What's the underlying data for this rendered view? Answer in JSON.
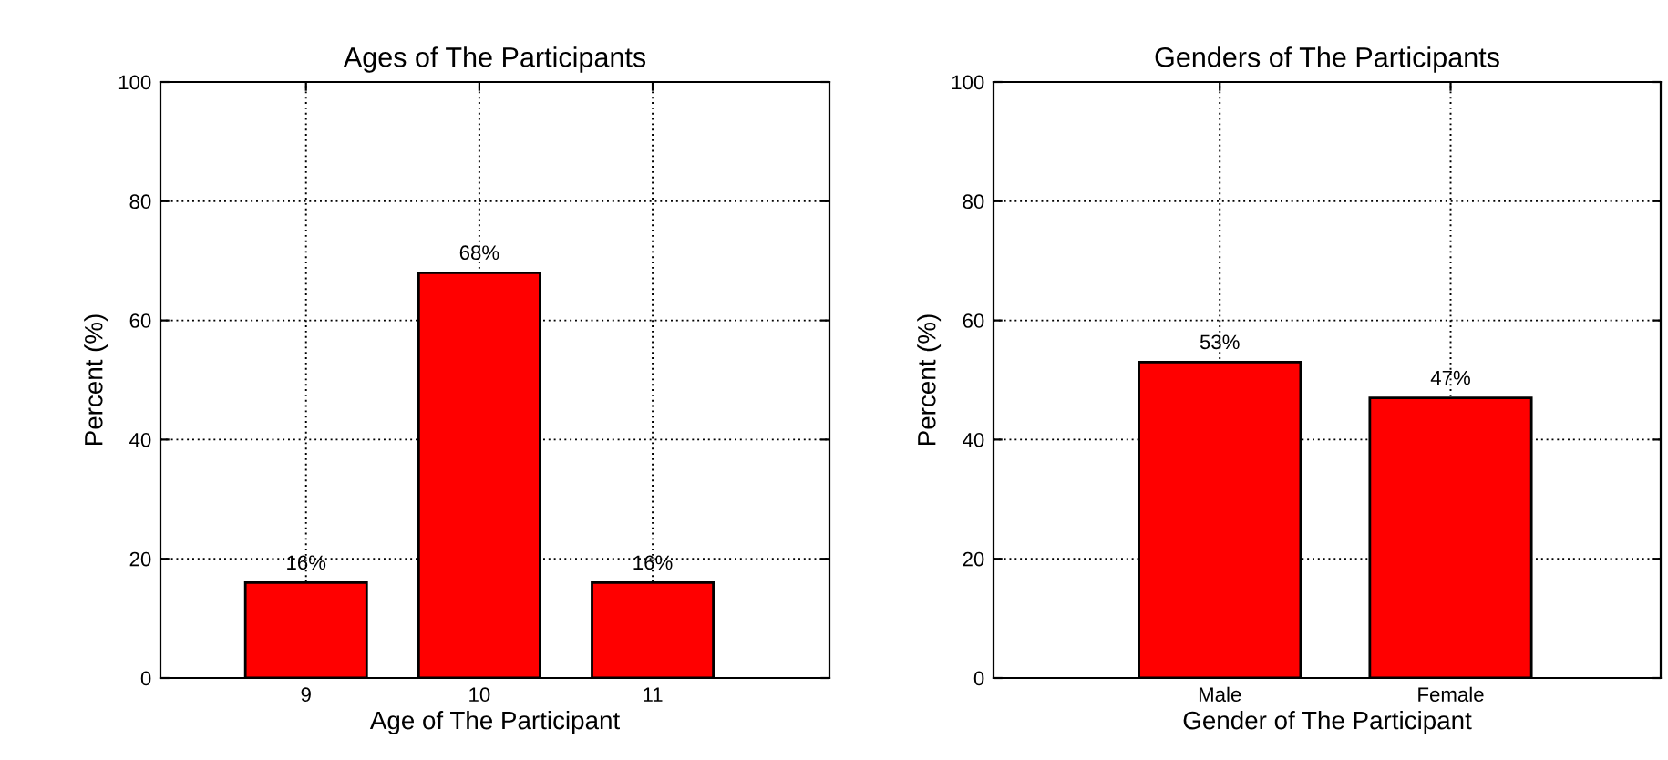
{
  "chart_data": [
    {
      "type": "bar",
      "title": "Ages of The Participants",
      "xlabel": "Age of The Participant",
      "ylabel": "Percent (%)",
      "categories": [
        "9",
        "10",
        "11"
      ],
      "values": [
        16,
        68,
        16
      ],
      "value_labels": [
        "16%",
        "68%",
        "16%"
      ],
      "color": "#ff0000",
      "ylim": [
        0,
        100
      ],
      "yticks": [
        0,
        20,
        40,
        60,
        80,
        100
      ],
      "grid": true
    },
    {
      "type": "bar",
      "title": "Genders of The Participants",
      "xlabel": "Gender of The Participant",
      "ylabel": "Percent (%)",
      "categories": [
        "Male",
        "Female"
      ],
      "values": [
        53,
        47
      ],
      "value_labels": [
        "53%",
        "47%"
      ],
      "color": "#ff0000",
      "ylim": [
        0,
        100
      ],
      "yticks": [
        0,
        20,
        40,
        60,
        80,
        100
      ],
      "grid": true
    }
  ]
}
